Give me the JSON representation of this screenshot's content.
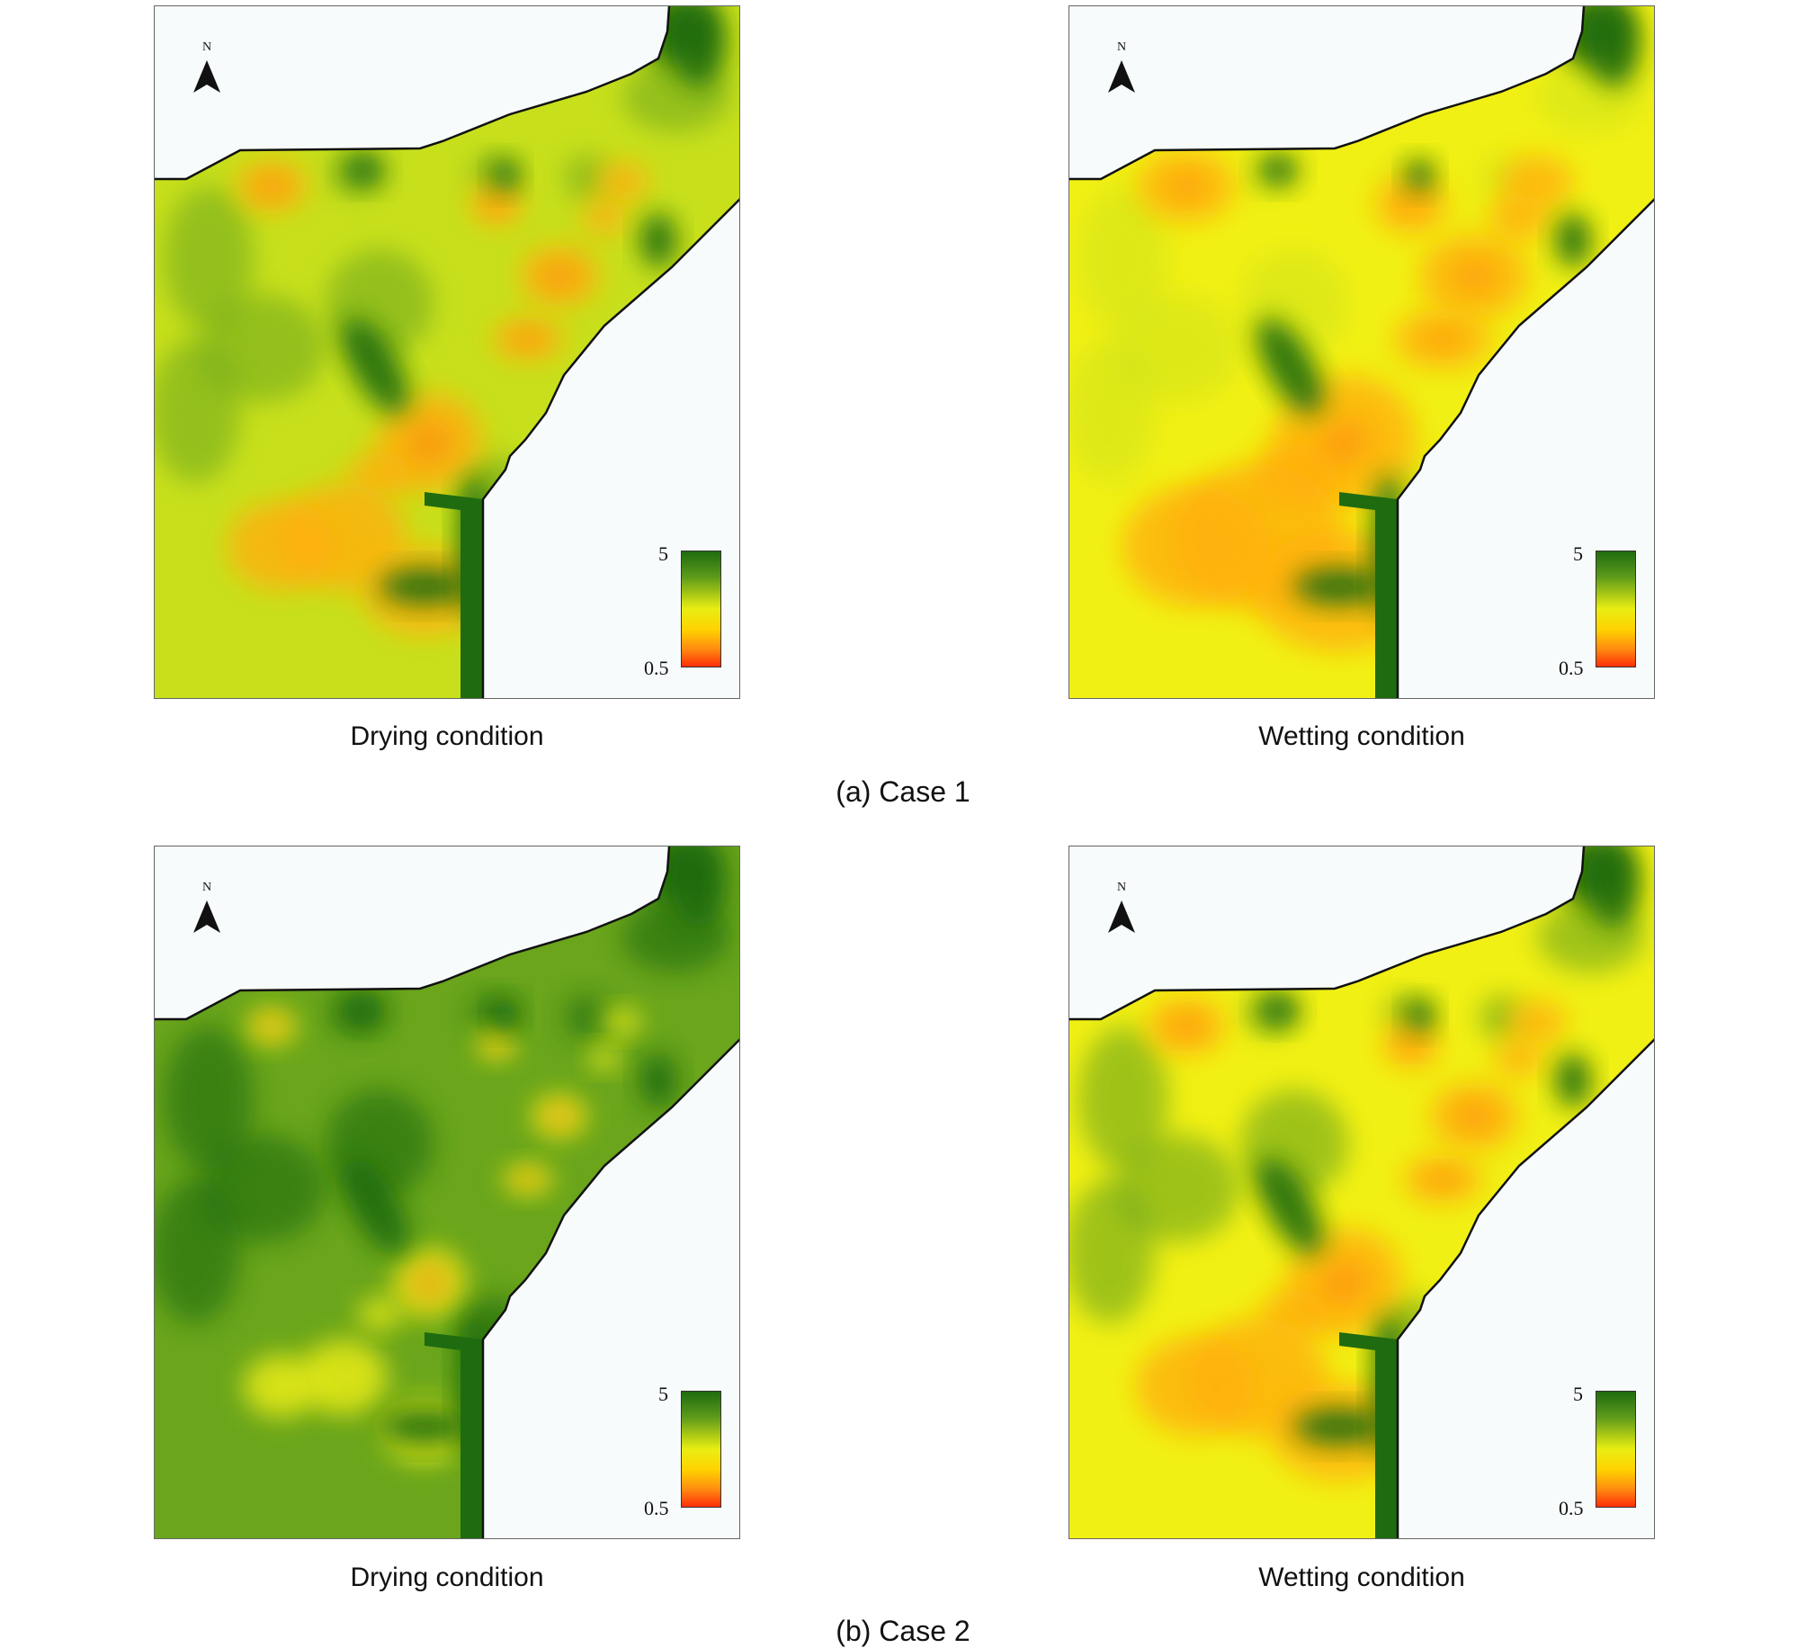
{
  "colors": {
    "sea": "#f8fbfc",
    "dark_green": "#1f6b10",
    "green": "#6aa51c",
    "yellow_green": "#c8e01c",
    "yellow": "#f1f014",
    "orange": "#ffb00a",
    "red_orange": "#ff6e10",
    "coast": "#111111"
  },
  "north_label": "N",
  "legend": {
    "max": "5",
    "min": "0.5"
  },
  "cases": [
    {
      "caption": "(a) Case 1",
      "panels": [
        {
          "caption": "Drying condition",
          "scheme": "c1d"
        },
        {
          "caption": "Wetting condition",
          "scheme": "c1w"
        }
      ]
    },
    {
      "caption": "(b) Case 2",
      "panels": [
        {
          "caption": "Drying condition",
          "scheme": "c2d"
        },
        {
          "caption": "Wetting condition",
          "scheme": "c2w"
        }
      ]
    }
  ]
}
